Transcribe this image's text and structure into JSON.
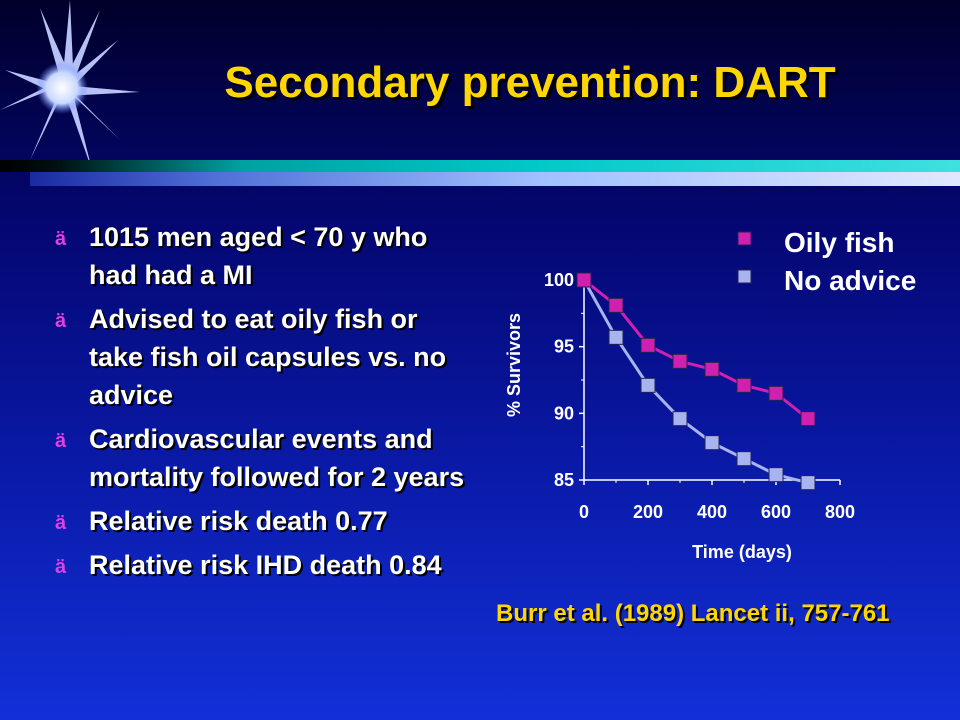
{
  "slide": {
    "title": "Secondary prevention: DART",
    "bullet_marker": "ä",
    "bullets": [
      "1015 men aged < 70 y who had had a MI",
      "Advised to eat oily fish or take fish oil capsules vs. no advice",
      "Cardiovascular events and mortality followed for 2 years",
      "Relative risk death 0.77",
      "Relative risk IHD death 0.84"
    ],
    "citation": "Burr et al. (1989) Lancet ii, 757-761"
  },
  "colors": {
    "title": "#ffd700",
    "oily_fish": "#d020b0",
    "no_advice": "#a8b4f0"
  },
  "chart_data": {
    "type": "line",
    "title": "",
    "xlabel": "Time (days)",
    "ylabel": "% Survivors",
    "xlim": [
      0,
      800
    ],
    "ylim": [
      85,
      100
    ],
    "x_ticks": [
      0,
      200,
      400,
      600,
      800
    ],
    "y_ticks": [
      85,
      90,
      95,
      100
    ],
    "grid": false,
    "legend_position": "top-right",
    "series": [
      {
        "name": "Oily fish",
        "x": [
          0,
          100,
          200,
          300,
          400,
          500,
          600,
          700
        ],
        "y": [
          100,
          98.1,
          95.1,
          93.9,
          93.3,
          92.1,
          91.5,
          89.6
        ]
      },
      {
        "name": "No advice",
        "x": [
          0,
          100,
          200,
          300,
          400,
          500,
          600,
          700
        ],
        "y": [
          100,
          95.7,
          92.1,
          89.6,
          87.8,
          86.6,
          85.4,
          84.8
        ]
      }
    ]
  }
}
